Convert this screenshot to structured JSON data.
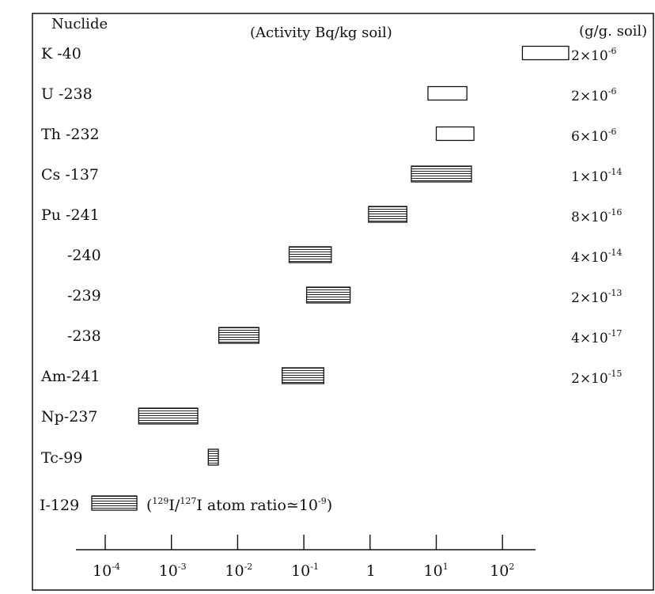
{
  "chart_data": {
    "type": "range-bar",
    "x_scale": "log10",
    "header": {
      "nuclide_col": "Nuclide",
      "activity_col": "(Activity Bq/kg soil)",
      "conc_col": "(g/g. soil)"
    },
    "x_ticks": [
      {
        "value": 0.0001,
        "base": "10",
        "exp": "-4"
      },
      {
        "value": 0.001,
        "base": "10",
        "exp": "-3"
      },
      {
        "value": 0.01,
        "base": "10",
        "exp": "-2"
      },
      {
        "value": 0.1,
        "base": "10",
        "exp": "-1"
      },
      {
        "value": 1,
        "base": "1",
        "exp": ""
      },
      {
        "value": 10,
        "base": "10",
        "exp": "1"
      },
      {
        "value": 100,
        "base": "10",
        "exp": "2"
      }
    ],
    "rows": [
      {
        "label": "K -40",
        "min": 200,
        "max": 1000,
        "fill": "open",
        "conc_mant": "2×10",
        "conc_exp": "-6"
      },
      {
        "label": "U -238",
        "min": 7.5,
        "max": 29,
        "fill": "open",
        "conc_mant": "2×10",
        "conc_exp": "-6"
      },
      {
        "label": "Th -232",
        "min": 10,
        "max": 37,
        "fill": "open",
        "conc_mant": "6×10",
        "conc_exp": "-6"
      },
      {
        "label": "Cs -137",
        "min": 4.2,
        "max": 34,
        "fill": "hatched",
        "conc_mant": "1×10",
        "conc_exp": "-14"
      },
      {
        "label": "Pu -241",
        "min": 0.95,
        "max": 3.6,
        "fill": "hatched",
        "conc_mant": "8×10",
        "conc_exp": "-16"
      },
      {
        "label": "-240",
        "min": 0.06,
        "max": 0.26,
        "fill": "hatched",
        "conc_mant": "4×10",
        "conc_exp": "-14"
      },
      {
        "label": "-239",
        "min": 0.11,
        "max": 0.5,
        "fill": "hatched",
        "conc_mant": "2×10",
        "conc_exp": "-13"
      },
      {
        "label": "-238",
        "min": 0.0052,
        "max": 0.021,
        "fill": "hatched",
        "conc_mant": "4×10",
        "conc_exp": "-17"
      },
      {
        "label": "Am-241",
        "min": 0.047,
        "max": 0.2,
        "fill": "hatched",
        "conc_mant": "2×10",
        "conc_exp": "-15"
      },
      {
        "label": "Np-237",
        "min": 0.00032,
        "max": 0.0025,
        "fill": "hatched",
        "conc_mant": "",
        "conc_exp": ""
      },
      {
        "label": "Tc-99",
        "min": 0.0036,
        "max": 0.0051,
        "fill": "hatched",
        "conc_mant": "",
        "conc_exp": ""
      }
    ],
    "i129": {
      "label": "I-129",
      "note_open": "(",
      "note_sup1": "129",
      "note_mid": "I/",
      "note_sup2": "127",
      "note_text": "I atom ratio≃10",
      "note_exp": "-9",
      "note_close": ")"
    }
  }
}
